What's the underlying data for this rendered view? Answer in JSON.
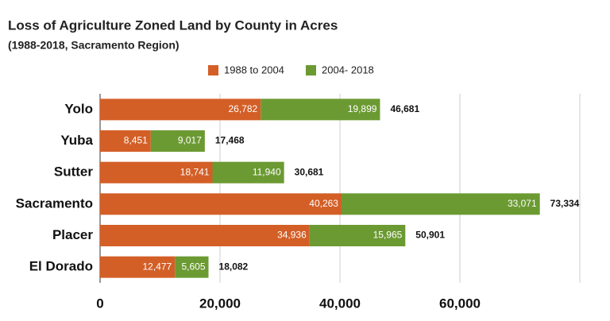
{
  "chart_data": {
    "type": "stacked-bar-horizontal",
    "title": "Loss of Agriculture Zoned Land by County in Acres",
    "subtitle": "(1988-2018, Sacramento Region)",
    "categories": [
      "Yolo",
      "Yuba",
      "Sutter",
      "Sacramento",
      "Placer",
      "El Dorado"
    ],
    "series": [
      {
        "name": "1988 to 2004",
        "color": "#d35f27",
        "values": [
          26782,
          8451,
          18741,
          40263,
          34936,
          12477
        ],
        "value_labels": [
          "26,782",
          "8,451",
          "18,741",
          "40,263",
          "34,936",
          "12,477"
        ]
      },
      {
        "name": "2004- 2018",
        "color": "#6b9a32",
        "values": [
          19899,
          9017,
          11940,
          33071,
          15965,
          5605
        ],
        "value_labels": [
          "19,899",
          "9,017",
          "11,940",
          "33,071",
          "15,965",
          "5,605"
        ]
      }
    ],
    "totals": [
      46681,
      17468,
      30681,
      73334,
      50901,
      18082
    ],
    "total_labels": [
      "46,681",
      "17,468",
      "30,681",
      "73,334",
      "50,901",
      "18,082"
    ],
    "xlim": [
      0,
      80000
    ],
    "xticks": [
      0,
      {
        "value": 20000,
        "label": "20,000"
      },
      {
        "value": 40000,
        "label": "40,000"
      },
      {
        "value": 60000,
        "label": "60,000"
      }
    ],
    "grid": true,
    "legend": "top"
  }
}
